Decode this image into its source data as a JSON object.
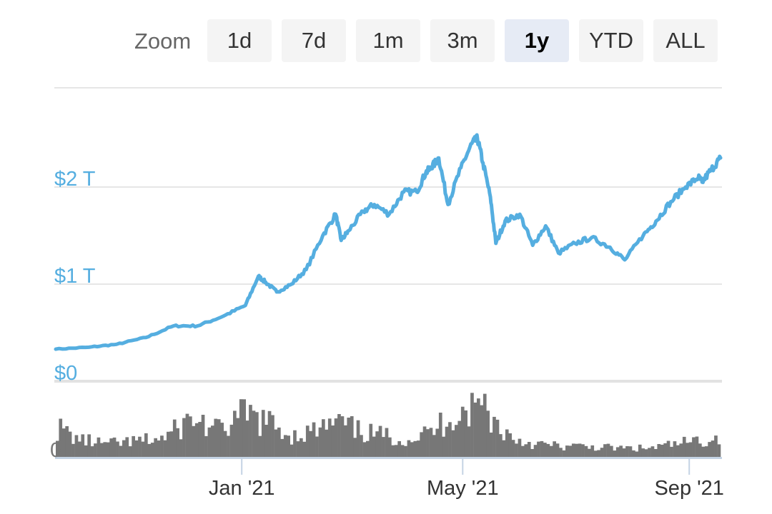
{
  "zoom": {
    "label": "Zoom",
    "buttons": [
      {
        "label": "1d",
        "active": false
      },
      {
        "label": "7d",
        "active": false
      },
      {
        "label": "1m",
        "active": false
      },
      {
        "label": "3m",
        "active": false
      },
      {
        "label": "1y",
        "active": true
      },
      {
        "label": "YTD",
        "active": false
      },
      {
        "label": "ALL",
        "active": false
      }
    ]
  },
  "chart_data": {
    "type": "line",
    "title": "",
    "xlabel": "",
    "ylabel": "",
    "x_ticks": [
      "Jan '21",
      "May '21",
      "Sep '21"
    ],
    "y_ticks": [
      "$0",
      "$1 T",
      "$2 T"
    ],
    "y_tick_values": [
      0,
      1,
      2
    ],
    "ylim": [
      0,
      3
    ],
    "grid": true,
    "legend": "none",
    "line_color": "#55aee0",
    "volume_color": "#777777",
    "volume_axis_label": "0",
    "series": [
      {
        "x": [
          "2020-09-22",
          "2020-10-10",
          "2020-10-25",
          "2020-11-10",
          "2020-11-25",
          "2020-12-08",
          "2020-12-22",
          "2021-01-03",
          "2021-01-10",
          "2021-01-14",
          "2021-01-20",
          "2021-01-28",
          "2021-02-05",
          "2021-02-14",
          "2021-02-21",
          "2021-02-24",
          "2021-02-28",
          "2021-03-08",
          "2021-03-14",
          "2021-03-22",
          "2021-03-30",
          "2021-04-06",
          "2021-04-11",
          "2021-04-14",
          "2021-04-18",
          "2021-04-23",
          "2021-04-30",
          "2021-05-06",
          "2021-05-09",
          "2021-05-12",
          "2021-05-16",
          "2021-05-19",
          "2021-05-24",
          "2021-06-01",
          "2021-06-08",
          "2021-06-15",
          "2021-06-22",
          "2021-07-01",
          "2021-07-10",
          "2021-07-20",
          "2021-07-28",
          "2021-08-07",
          "2021-08-14",
          "2021-08-22",
          "2021-08-30",
          "2021-09-06",
          "2021-09-08",
          "2021-09-13",
          "2021-09-18"
        ],
        "y": [
          0.33,
          0.35,
          0.38,
          0.45,
          0.57,
          0.57,
          0.67,
          0.78,
          1.08,
          1.02,
          0.92,
          1.0,
          1.15,
          1.5,
          1.72,
          1.45,
          1.55,
          1.75,
          1.82,
          1.72,
          1.95,
          1.95,
          2.15,
          2.2,
          2.3,
          1.82,
          2.2,
          2.45,
          2.5,
          2.25,
          1.9,
          1.42,
          1.65,
          1.72,
          1.4,
          1.6,
          1.32,
          1.42,
          1.48,
          1.38,
          1.25,
          1.5,
          1.65,
          1.85,
          2.0,
          2.1,
          2.05,
          2.18,
          2.3
        ]
      }
    ],
    "volume": {
      "x": [
        "2020-09-22",
        "2020-10-05",
        "2020-10-20",
        "2020-11-05",
        "2020-11-20",
        "2020-12-05",
        "2020-12-20",
        "2021-01-03",
        "2021-01-15",
        "2021-01-28",
        "2021-02-10",
        "2021-02-22",
        "2021-03-05",
        "2021-03-18",
        "2021-04-01",
        "2021-04-15",
        "2021-04-25",
        "2021-05-05",
        "2021-05-12",
        "2021-05-20",
        "2021-05-30",
        "2021-06-10",
        "2021-06-25",
        "2021-07-10",
        "2021-07-25",
        "2021-08-10",
        "2021-08-25",
        "2021-09-10",
        "2021-09-18"
      ],
      "y": [
        0.35,
        0.2,
        0.15,
        0.18,
        0.22,
        0.45,
        0.3,
        0.5,
        0.4,
        0.25,
        0.3,
        0.4,
        0.3,
        0.25,
        0.2,
        0.3,
        0.5,
        0.55,
        0.65,
        0.35,
        0.2,
        0.15,
        0.12,
        0.12,
        0.1,
        0.1,
        0.15,
        0.2,
        0.22
      ]
    }
  }
}
